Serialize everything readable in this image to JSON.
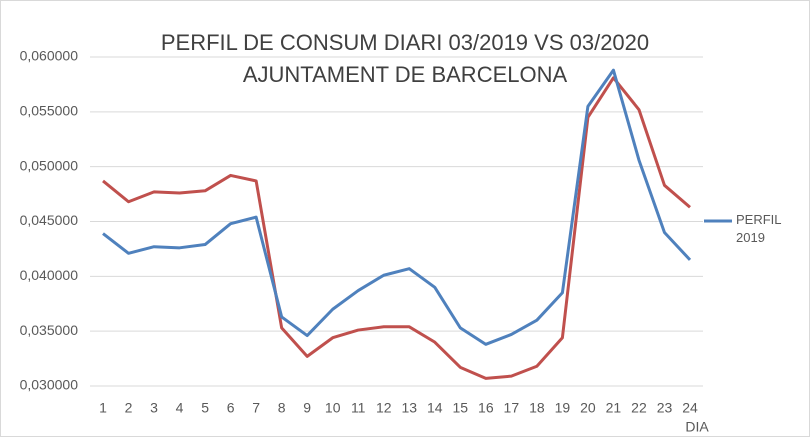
{
  "chart_data": {
    "type": "line",
    "title": "PERFIL DE CONSUM DIARI 03/2019 VS 03/2020",
    "subtitle": "AJUNTAMENT DE BARCELONA",
    "x_label": "DIA",
    "categories": [
      "1",
      "2",
      "3",
      "4",
      "5",
      "6",
      "7",
      "8",
      "9",
      "10",
      "11",
      "12",
      "13",
      "14",
      "15",
      "16",
      "17",
      "18",
      "19",
      "20",
      "21",
      "22",
      "23",
      "24"
    ],
    "series": [
      {
        "name": "PERFIL 2019",
        "color": "#4f81bd",
        "values": [
          0.0439,
          0.0421,
          0.0427,
          0.0426,
          0.0429,
          0.0448,
          0.0454,
          0.0363,
          0.0346,
          0.037,
          0.0387,
          0.0401,
          0.0407,
          0.039,
          0.0353,
          0.0338,
          0.0347,
          0.036,
          0.0385,
          0.0555,
          0.0588,
          0.0506,
          0.044,
          0.0415
        ]
      },
      {
        "color": "#c0504d",
        "values": [
          0.0487,
          0.0468,
          0.0477,
          0.0476,
          0.0478,
          0.0492,
          0.0487,
          0.0353,
          0.0327,
          0.0344,
          0.0351,
          0.0354,
          0.0354,
          0.034,
          0.0317,
          0.0307,
          0.0309,
          0.0318,
          0.0344,
          0.0545,
          0.0581,
          0.0552,
          0.0483,
          0.0463
        ]
      }
    ],
    "ylim": [
      0.03,
      0.06
    ],
    "yticks": [
      {
        "value": 0.03,
        "label": "0,030000"
      },
      {
        "value": 0.035,
        "label": "0,035000"
      },
      {
        "value": 0.04,
        "label": "0,040000"
      },
      {
        "value": 0.045,
        "label": "0,045000"
      },
      {
        "value": 0.05,
        "label": "0,050000"
      },
      {
        "value": 0.055,
        "label": "0,055000"
      },
      {
        "value": 0.06,
        "label": "0,060000"
      }
    ],
    "grid": true,
    "legend": "right"
  }
}
